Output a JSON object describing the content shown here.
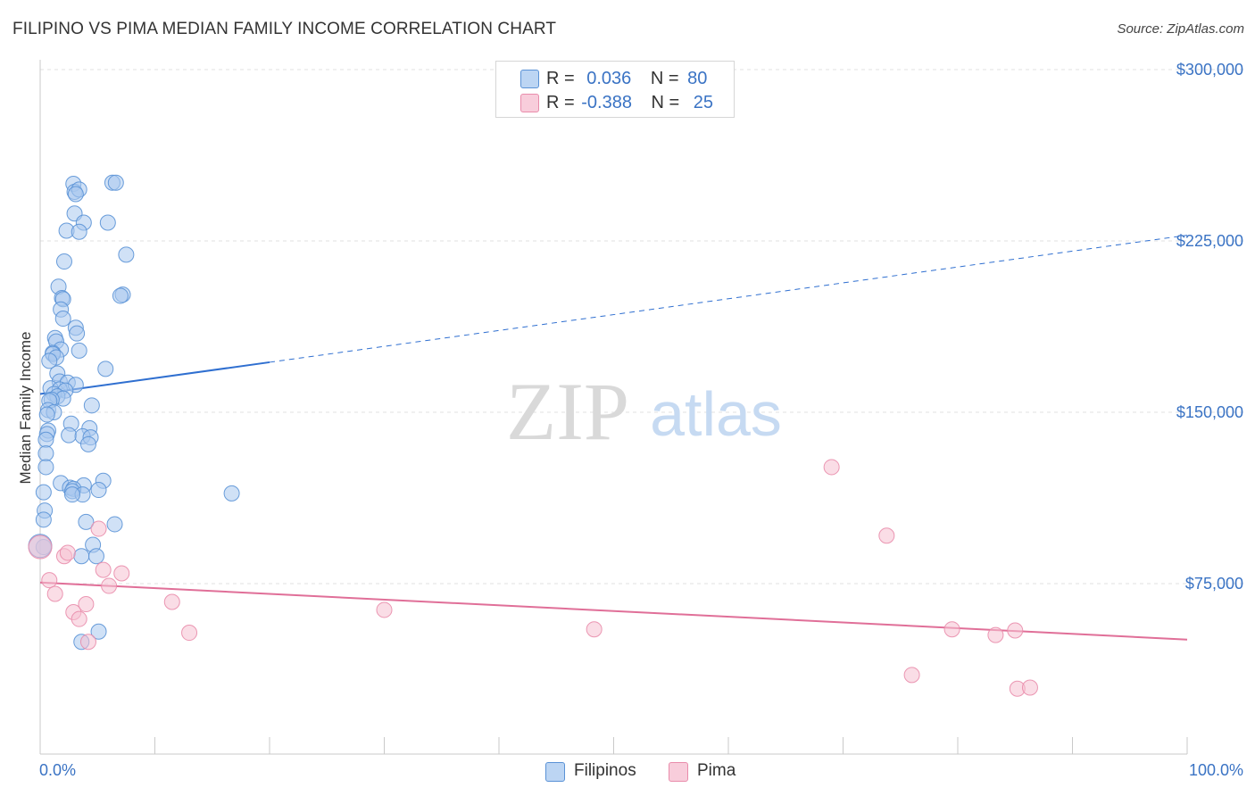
{
  "title": "FILIPINO VS PIMA MEDIAN FAMILY INCOME CORRELATION CHART",
  "source": "Source: ZipAtlas.com",
  "watermark": {
    "zip": "ZIP",
    "atlas": "atlas"
  },
  "legend": {
    "rows": [
      {
        "r_label": "R =",
        "r_value": "0.036",
        "n_label": "N =",
        "n_value": "80"
      },
      {
        "r_label": "R =",
        "r_value": "-0.388",
        "n_label": "N =",
        "n_value": "25"
      }
    ]
  },
  "bottom_legend": {
    "filipinos": "Filipinos",
    "pima": "Pima"
  },
  "colors": {
    "blue_fill": "#a9c8ee",
    "blue_stroke": "#5a92d6",
    "blue_line": "#2f6fd0",
    "pink_fill": "#f6c1d2",
    "pink_stroke": "#e98cab",
    "pink_line": "#e06f98",
    "tick_text": "#3a73c4",
    "grid": "#e2e2e2"
  },
  "chart_data": {
    "type": "scatter",
    "title": "FILIPINO VS PIMA MEDIAN FAMILY INCOME CORRELATION CHART",
    "xlabel": "",
    "ylabel": "Median Family Income",
    "xlim": [
      0,
      100
    ],
    "ylim": [
      0,
      310000
    ],
    "x_tick_labels": [
      "0.0%",
      "100.0%"
    ],
    "y_ticks": [
      {
        "value": 75000,
        "label": "$75,000"
      },
      {
        "value": 150000,
        "label": "$150,000"
      },
      {
        "value": 225000,
        "label": "$225,000"
      },
      {
        "value": 300000,
        "label": "$300,000"
      }
    ],
    "series": [
      {
        "name": "Filipinos",
        "R": 0.036,
        "N": 80,
        "trend": {
          "x0": 0,
          "y0": 158000,
          "x1": 100,
          "y1": 227500,
          "solid_until": 20
        },
        "points": [
          [
            2.9,
            250000
          ],
          [
            6.3,
            250500
          ],
          [
            6.6,
            250500
          ],
          [
            3.0,
            246500
          ],
          [
            3.4,
            247500
          ],
          [
            3.1,
            245500
          ],
          [
            3.0,
            237000
          ],
          [
            3.8,
            233000
          ],
          [
            5.9,
            233000
          ],
          [
            2.3,
            229500
          ],
          [
            3.4,
            229000
          ],
          [
            7.5,
            219000
          ],
          [
            2.1,
            216000
          ],
          [
            1.6,
            205000
          ],
          [
            7.2,
            201500
          ],
          [
            7.0,
            201000
          ],
          [
            1.9,
            200000
          ],
          [
            2.0,
            199500
          ],
          [
            1.8,
            195000
          ],
          [
            2.0,
            191000
          ],
          [
            3.1,
            187000
          ],
          [
            3.2,
            184500
          ],
          [
            1.3,
            182500
          ],
          [
            1.4,
            181000
          ],
          [
            1.8,
            177500
          ],
          [
            3.4,
            177000
          ],
          [
            1.1,
            176000
          ],
          [
            1.1,
            175500
          ],
          [
            1.4,
            174000
          ],
          [
            0.8,
            172500
          ],
          [
            5.7,
            169000
          ],
          [
            1.5,
            167000
          ],
          [
            1.7,
            163500
          ],
          [
            2.4,
            163000
          ],
          [
            3.1,
            162000
          ],
          [
            0.9,
            160500
          ],
          [
            1.7,
            160000
          ],
          [
            2.2,
            159500
          ],
          [
            1.2,
            158000
          ],
          [
            1.5,
            157000
          ],
          [
            2.0,
            156000
          ],
          [
            1.0,
            155500
          ],
          [
            0.8,
            155000
          ],
          [
            4.5,
            153000
          ],
          [
            0.7,
            151000
          ],
          [
            1.2,
            150000
          ],
          [
            0.6,
            149000
          ],
          [
            2.7,
            145000
          ],
          [
            4.3,
            143000
          ],
          [
            0.7,
            142000
          ],
          [
            0.6,
            140500
          ],
          [
            2.5,
            140000
          ],
          [
            3.7,
            139500
          ],
          [
            4.4,
            139000
          ],
          [
            0.5,
            138000
          ],
          [
            4.2,
            136000
          ],
          [
            0.5,
            132000
          ],
          [
            0.5,
            126000
          ],
          [
            5.5,
            120000
          ],
          [
            1.8,
            119000
          ],
          [
            3.8,
            118000
          ],
          [
            2.6,
            117000
          ],
          [
            2.9,
            116500
          ],
          [
            5.1,
            116000
          ],
          [
            2.8,
            115500
          ],
          [
            0.3,
            115000
          ],
          [
            16.7,
            114500
          ],
          [
            3.7,
            114000
          ],
          [
            2.8,
            114000
          ],
          [
            0.4,
            107000
          ],
          [
            0.3,
            103000
          ],
          [
            4.0,
            102000
          ],
          [
            6.5,
            101000
          ],
          [
            4.6,
            92000
          ],
          [
            0.3,
            91000
          ],
          [
            3.6,
            87000
          ],
          [
            4.9,
            87000
          ],
          [
            5.1,
            54000
          ],
          [
            3.6,
            49500
          ],
          [
            0.0,
            91500
          ]
        ]
      },
      {
        "name": "Pima",
        "R": -0.388,
        "N": 25,
        "trend": {
          "x0": 0,
          "y0": 75500,
          "x1": 100,
          "y1": 50500
        },
        "points": [
          [
            0.0,
            91000
          ],
          [
            2.1,
            87000
          ],
          [
            2.4,
            88500
          ],
          [
            5.1,
            99000
          ],
          [
            5.5,
            81000
          ],
          [
            0.8,
            76500
          ],
          [
            6.0,
            74000
          ],
          [
            7.1,
            79500
          ],
          [
            1.3,
            70500
          ],
          [
            4.0,
            66000
          ],
          [
            11.5,
            67000
          ],
          [
            2.9,
            62500
          ],
          [
            3.4,
            59500
          ],
          [
            30.0,
            63500
          ],
          [
            4.2,
            49500
          ],
          [
            13.0,
            53500
          ],
          [
            48.3,
            55000
          ],
          [
            69.0,
            126000
          ],
          [
            73.8,
            96000
          ],
          [
            79.5,
            55000
          ],
          [
            83.3,
            52500
          ],
          [
            85.0,
            54500
          ],
          [
            76.0,
            35000
          ],
          [
            85.2,
            29000
          ],
          [
            86.3,
            29500
          ]
        ]
      }
    ]
  }
}
